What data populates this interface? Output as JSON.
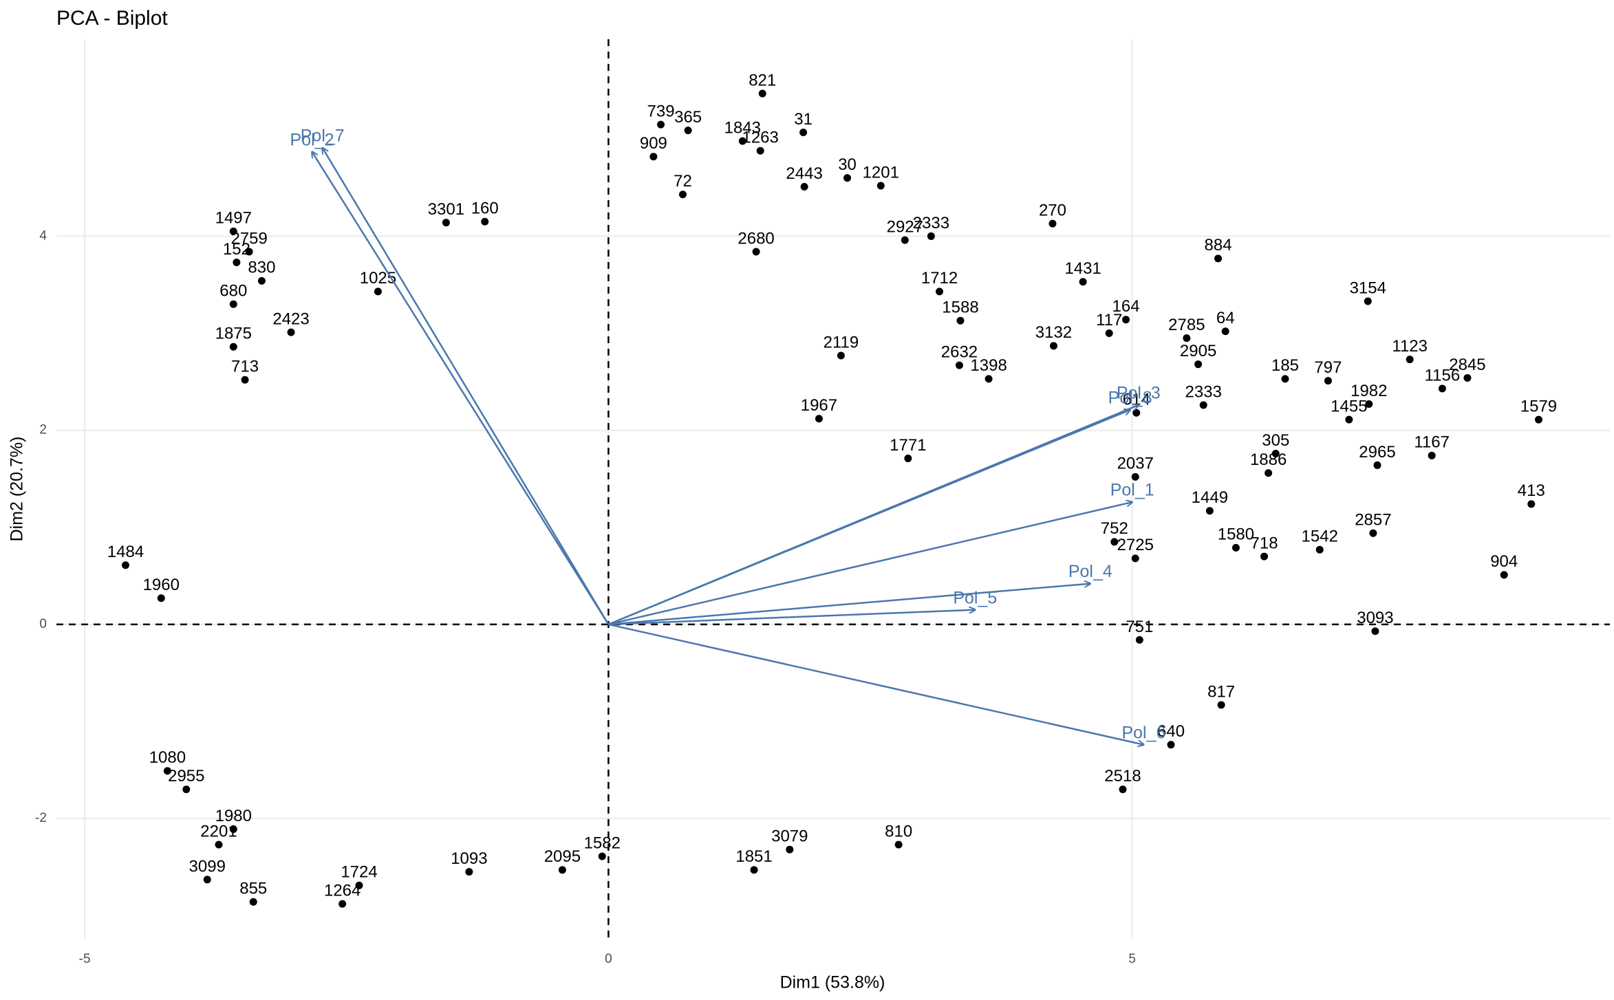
{
  "chart_data": {
    "type": "scatter",
    "title": "PCA - Biplot",
    "x_label": "Dim1 (53.8%)",
    "y_label": "Dim2 (20.7%)",
    "xlim": [
      -5.27,
      9.56
    ],
    "ylim": [
      -3.24,
      6.03
    ],
    "xticks": [
      -5,
      0,
      5
    ],
    "yticks": [
      -2,
      0,
      2,
      4
    ],
    "grid": true,
    "color": "#000000",
    "labels": [
      "821",
      "31",
      "1843",
      "1263",
      "739",
      "365",
      "909",
      "72",
      "2443",
      "30",
      "1201",
      "2680",
      "2927",
      "2333",
      "270",
      "884",
      "1431",
      "164",
      "117",
      "3154",
      "64",
      "2785",
      "2905",
      "185",
      "797",
      "1123",
      "2845",
      "1156",
      "1982",
      "1455",
      "1579",
      "2333",
      "614",
      "305",
      "1886",
      "1167",
      "2965",
      "413",
      "904",
      "3093",
      "1542",
      "1580",
      "718",
      "2857",
      "752",
      "2725",
      "751",
      "817",
      "640",
      "2518",
      "1484",
      "1960",
      "1080",
      "2955",
      "3099",
      "2201",
      "1980",
      "855",
      "1264",
      "1724",
      "1093",
      "2095",
      "1582",
      "1851",
      "3079",
      "810",
      "1497",
      "2759",
      "152",
      "830",
      "680",
      "1875",
      "713",
      "2423",
      "3301",
      "160",
      "1025",
      "1712",
      "1588",
      "3132",
      "2632",
      "1398",
      "2119",
      "1967",
      "1771",
      "2037",
      "1449"
    ],
    "x": [
      1.47,
      1.86,
      1.28,
      1.45,
      0.5,
      0.76,
      0.43,
      0.71,
      1.87,
      2.28,
      2.6,
      1.41,
      2.83,
      3.08,
      4.24,
      5.82,
      4.53,
      4.94,
      4.78,
      7.25,
      5.89,
      5.52,
      5.63,
      6.46,
      6.87,
      7.65,
      8.2,
      7.96,
      7.26,
      7.07,
      8.88,
      5.68,
      5.04,
      6.37,
      6.3,
      7.86,
      7.34,
      8.81,
      8.55,
      7.32,
      6.79,
      5.99,
      6.26,
      7.3,
      4.83,
      5.03,
      5.07,
      5.85,
      5.37,
      4.91,
      -4.61,
      -4.27,
      -4.21,
      -4.03,
      -3.83,
      -3.72,
      -3.58,
      -3.39,
      -2.54,
      -2.38,
      -1.33,
      -0.44,
      -0.06,
      1.39,
      1.73,
      2.77,
      -3.58,
      -3.43,
      -3.55,
      -3.31,
      -3.58,
      -3.58,
      -3.47,
      -3.03,
      -1.55,
      -1.18,
      -2.2,
      3.16,
      3.36,
      4.25,
      3.35,
      3.63,
      2.22,
      2.01,
      2.86,
      5.03,
      5.74
    ],
    "y": [
      5.47,
      5.07,
      4.98,
      4.88,
      5.15,
      5.09,
      4.82,
      4.43,
      4.51,
      4.6,
      4.52,
      3.84,
      3.96,
      4.0,
      4.13,
      3.77,
      3.53,
      3.14,
      3.0,
      3.33,
      3.02,
      2.95,
      2.68,
      2.53,
      2.51,
      2.73,
      2.54,
      2.43,
      2.27,
      2.11,
      2.11,
      2.26,
      2.18,
      1.76,
      1.56,
      1.74,
      1.64,
      1.24,
      0.51,
      -0.07,
      0.77,
      0.79,
      0.7,
      0.94,
      0.85,
      0.68,
      -0.16,
      -0.83,
      -1.24,
      -1.7,
      0.61,
      0.27,
      -1.51,
      -1.7,
      -2.63,
      -2.27,
      -2.11,
      -2.86,
      -2.88,
      -2.69,
      -2.55,
      -2.53,
      -2.39,
      -2.53,
      -2.32,
      -2.27,
      4.05,
      3.84,
      3.73,
      3.54,
      3.3,
      2.86,
      2.52,
      3.01,
      4.14,
      4.15,
      3.43,
      3.43,
      3.13,
      2.87,
      2.67,
      2.53,
      2.77,
      2.12,
      1.71,
      1.52,
      1.17
    ],
    "loadings": [
      {
        "name": "Pol_7",
        "x": -2.73,
        "y": 4.91,
        "color": "#4a77ac"
      },
      {
        "name": "Pol_2",
        "x": -2.83,
        "y": 4.87,
        "color": "#4a77ac"
      },
      {
        "name": "Pol_3",
        "x": 5.06,
        "y": 2.26,
        "color": "#4a77ac"
      },
      {
        "name": "Pol_8",
        "x": 4.98,
        "y": 2.21,
        "color": "#4a77ac"
      },
      {
        "name": "Pol_1",
        "x": 5.0,
        "y": 1.26,
        "color": "#4a77ac"
      },
      {
        "name": "Pol_4",
        "x": 4.6,
        "y": 0.42,
        "color": "#4a77ac"
      },
      {
        "name": "Pol_5",
        "x": 3.5,
        "y": 0.15,
        "color": "#4a77ac"
      },
      {
        "name": "Pol_6",
        "x": 5.11,
        "y": -1.24,
        "color": "#4a77ac"
      }
    ]
  }
}
